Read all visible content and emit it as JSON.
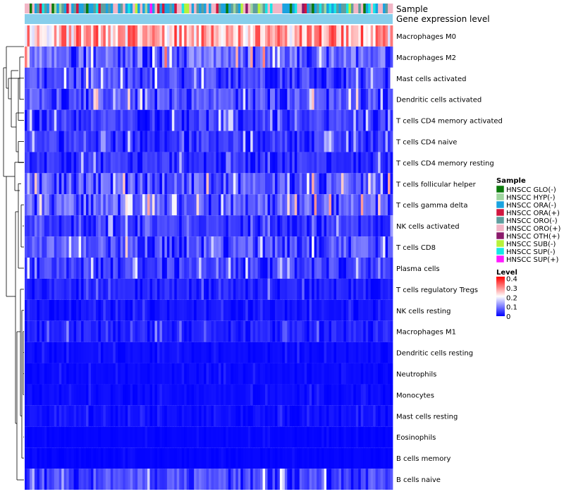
{
  "chart_data": {
    "type": "heatmap",
    "annotation_track_labels": [
      "Sample",
      "Gene expression level"
    ],
    "rows": [
      {
        "name": "Macrophages M0",
        "profile": 0.27
      },
      {
        "name": "Macrophages M2",
        "profile": 0.1
      },
      {
        "name": "Mast cells activated",
        "profile": 0.07
      },
      {
        "name": "Dendritic cells activated",
        "profile": 0.08
      },
      {
        "name": "T cells CD4 memory activated",
        "profile": 0.06
      },
      {
        "name": "T cells CD4 naive",
        "profile": 0.055
      },
      {
        "name": "T cells CD4 memory resting",
        "profile": 0.05
      },
      {
        "name": "T cells follicular helper",
        "profile": 0.085
      },
      {
        "name": "T cells gamma delta",
        "profile": 0.09
      },
      {
        "name": "NK cells activated",
        "profile": 0.05
      },
      {
        "name": "T cells CD8",
        "profile": 0.08
      },
      {
        "name": "Plasma cells",
        "profile": 0.06
      },
      {
        "name": "T cells regulatory  Tregs",
        "profile": 0.035
      },
      {
        "name": "NK cells resting",
        "profile": 0.02
      },
      {
        "name": "Macrophages M1",
        "profile": 0.035
      },
      {
        "name": "Dendritic cells resting",
        "profile": 0.012
      },
      {
        "name": "Neutrophils",
        "profile": 0.01
      },
      {
        "name": "Monocytes",
        "profile": 0.012
      },
      {
        "name": "Mast cells resting",
        "profile": 0.015
      },
      {
        "name": "Eosinophils",
        "profile": 0.005
      },
      {
        "name": "B cells memory",
        "profile": 0.005
      },
      {
        "name": "B cells naive",
        "profile": 0.07
      }
    ],
    "n_samples": 150,
    "sample_legend": {
      "title": "Sample",
      "entries": [
        {
          "label": "HNSCC GLO(-)",
          "color": "#0b7a0b"
        },
        {
          "label": "HNSCC HYP(-)",
          "color": "#9fd69f"
        },
        {
          "label": "HNSCC ORA(-)",
          "color": "#1aa3e0"
        },
        {
          "label": "HNSCC ORA(+)",
          "color": "#d1163f"
        },
        {
          "label": "HNSCC ORO(-)",
          "color": "#5f9e9e"
        },
        {
          "label": "HNSCC ORO(+)",
          "color": "#f2b6c6"
        },
        {
          "label": "HNSCC OTH(+)",
          "color": "#8b1a6b"
        },
        {
          "label": "HNSCC SUB(-)",
          "color": "#b7f23a"
        },
        {
          "label": "HNSCC SUP(-)",
          "color": "#17e6e6"
        },
        {
          "label": "HNSCC SUP(+)",
          "color": "#ff1aff"
        }
      ]
    },
    "level_legend": {
      "title": "Level",
      "ticks": [
        "0.4",
        "0.3",
        "0.2",
        "0.1",
        "0"
      ],
      "tick_values": [
        0.4,
        0.3,
        0.2,
        0.1,
        0
      ],
      "range": [
        0,
        0.42
      ],
      "colors": [
        "#0000ff",
        "#ffffff",
        "#ff0000"
      ]
    },
    "expression_track_color": "#87ceeb"
  }
}
